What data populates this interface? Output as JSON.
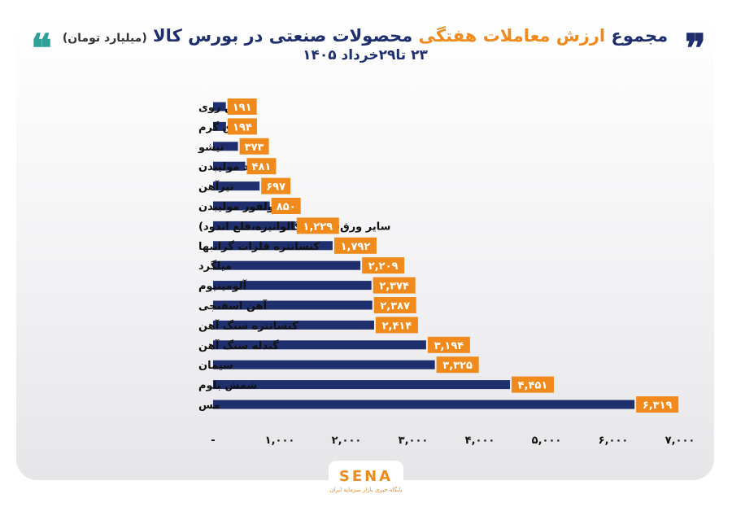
{
  "header": {
    "title_part1": "مجموع",
    "title_accent1": "ارزش معاملات",
    "title_accent2": "هفتگی",
    "title_part2": "محصولات صنعتی در بورس کالا",
    "title_unit": "(میلیارد تومان)",
    "subtitle": "۲۳ تا۲۹خرداد ۱۴۰۵",
    "quote_right": "❞",
    "quote_left": "❝"
  },
  "colors": {
    "bar": "#1f2f6e",
    "label_bg": "#f08a1c",
    "label_text": "#ffffff",
    "title": "#1f2f6e",
    "accent": "#f08a1c"
  },
  "chart_data": {
    "type": "bar",
    "orientation": "horizontal",
    "categories": [
      "شمش روی",
      "ورق گرم",
      "تیشو",
      "اکسید مولیبدن",
      "تیرآهن",
      "سولفور مولیبدن",
      "سایر ورق(رنگی، گالوانیزه،قلع اندود)",
      "کنسانتره فلزات گرانبها",
      "میلگرد",
      "آلومینیوم",
      "آهن اسفنجی",
      "کنسانتره سنگ آهن",
      "گندله سنگ آهن",
      "سیمان",
      "شمش بلوم",
      "مس"
    ],
    "values": [
      191,
      194,
      373,
      481,
      697,
      850,
      1229,
      1792,
      2209,
      2374,
      2387,
      2414,
      3194,
      3325,
      4451,
      6319
    ],
    "value_labels": [
      "۱۹۱",
      "۱۹۴",
      "۳۷۳",
      "۴۸۱",
      "۶۹۷",
      "۸۵۰",
      "۱,۲۲۹",
      "۱,۷۹۲",
      "۲,۲۰۹",
      "۲,۳۷۴",
      "۲,۳۸۷",
      "۲,۴۱۴",
      "۳,۱۹۴",
      "۳,۳۲۵",
      "۴,۴۵۱",
      "۶,۳۱۹"
    ],
    "xlim": [
      0,
      7000
    ],
    "xticks": [
      0,
      1000,
      2000,
      3000,
      4000,
      5000,
      6000,
      7000
    ],
    "xtick_labels": [
      "-",
      "۱,۰۰۰",
      "۲,۰۰۰",
      "۳,۰۰۰",
      "۴,۰۰۰",
      "۵,۰۰۰",
      "۶,۰۰۰",
      "۷,۰۰۰"
    ],
    "grid": false,
    "legend": "none"
  },
  "logo": {
    "text": "SENA",
    "subtext": "پایگاه خبری بازار سرمایه ایران"
  }
}
